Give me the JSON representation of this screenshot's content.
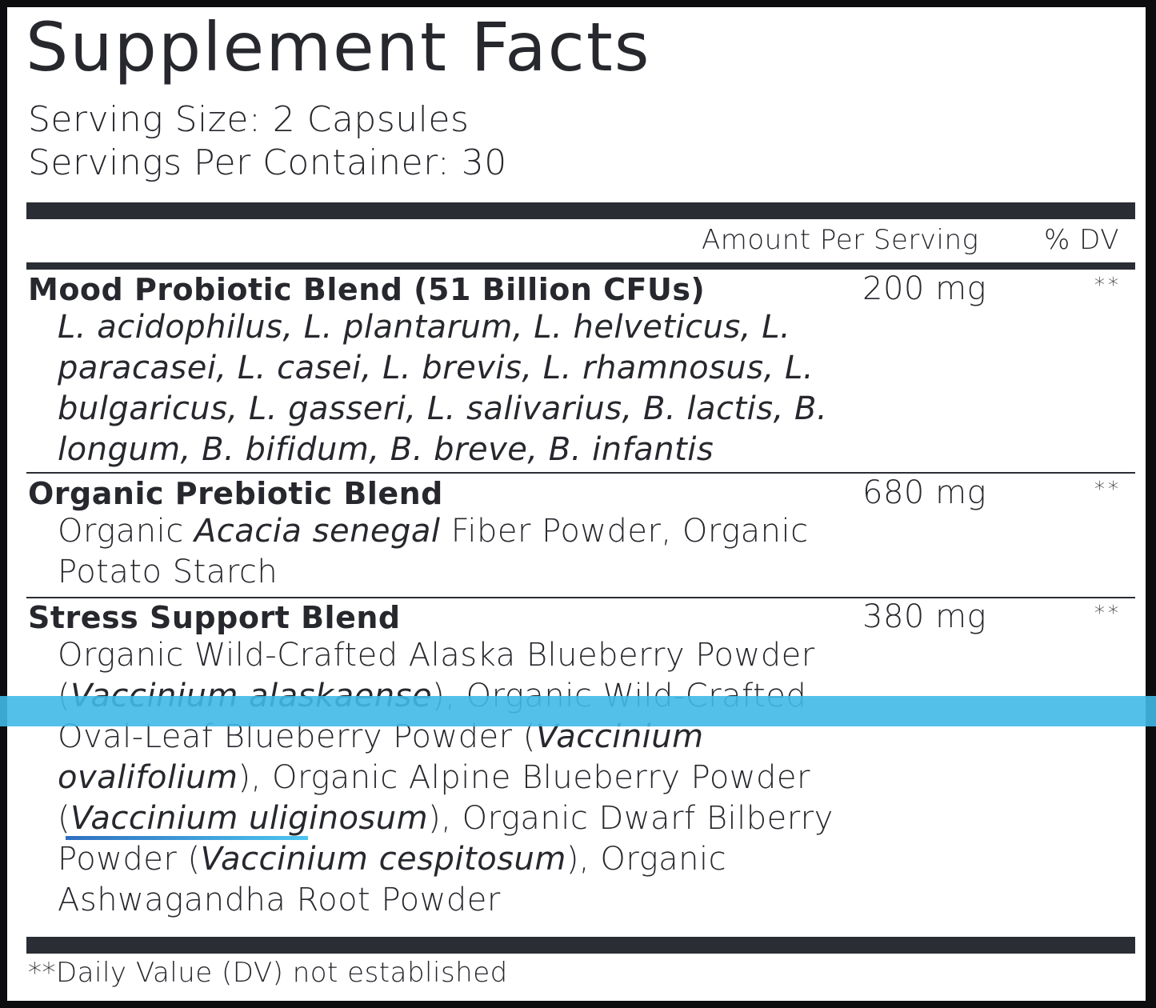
{
  "title": "Supplement Facts",
  "serving_size": "Serving Size: 2 Capsules",
  "servings_per_container": "Servings Per Container: 30",
  "header": {
    "amount": "Amount Per Serving",
    "dv": "% DV"
  },
  "blends": [
    {
      "name": "Mood Probiotic Blend (51 Billion CFUs)",
      "amount": "200 mg",
      "dv": "**",
      "lines": [
        [
          {
            "t": "L. acidophilus, L. plantarum, L. helveticus, L.",
            "i": true
          }
        ],
        [
          {
            "t": "paracasei, L. casei, L. brevis, L. rhamnosus, L.",
            "i": true
          }
        ],
        [
          {
            "t": "bulgaricus, L. gasseri, L. salivarius, B. lactis, B.",
            "i": true
          }
        ],
        [
          {
            "t": "longum, B. bifidum, B. breve, B. infantis",
            "i": true
          }
        ]
      ]
    },
    {
      "name": "Organic Prebiotic Blend",
      "amount": "680 mg",
      "dv": "**",
      "lines": [
        [
          {
            "t": "Organic ",
            "i": false
          },
          {
            "t": "Acacia senegal",
            "i": true
          },
          {
            "t": " Fiber Powder, Organic",
            "i": false
          }
        ],
        [
          {
            "t": "Potato Starch",
            "i": false
          }
        ]
      ]
    },
    {
      "name": "Stress Support Blend",
      "amount": "380 mg",
      "dv": "**",
      "lines": [
        [
          {
            "t": "Organic Wild-Crafted Alaska Blueberry Powder",
            "i": false
          }
        ],
        [
          {
            "t": "(",
            "i": false
          },
          {
            "t": "Vaccinium alaskaense",
            "i": true
          },
          {
            "t": "), Organic Wild-Crafted",
            "i": false
          }
        ],
        [
          {
            "t": "Oval-Leaf Blueberry Powder (",
            "i": false
          },
          {
            "t": "Vaccinium",
            "i": true
          }
        ],
        [
          {
            "t": "ovalifolium",
            "i": true
          },
          {
            "t": "), Organic Alpine Blueberry Powder",
            "i": false
          }
        ],
        [
          {
            "t": "(",
            "i": false
          },
          {
            "t": "Vaccinium uliginosum",
            "i": true
          },
          {
            "t": "), Organic Dwarf Bilberry",
            "i": false
          }
        ],
        [
          {
            "t": "Powder (",
            "i": false
          },
          {
            "t": "Vaccinium cespitosum",
            "i": true
          },
          {
            "t": "), Organic",
            "i": false
          }
        ],
        [
          {
            "t": "Ashwagandha Root Powder",
            "i": false
          }
        ]
      ]
    }
  ],
  "footnote": "**Daily Value (DV) not established",
  "colors": {
    "ink": "#26282d",
    "highlight": "#40b9e8",
    "underline_start": "#2f6fc0",
    "underline_end": "#4cc6f0"
  }
}
